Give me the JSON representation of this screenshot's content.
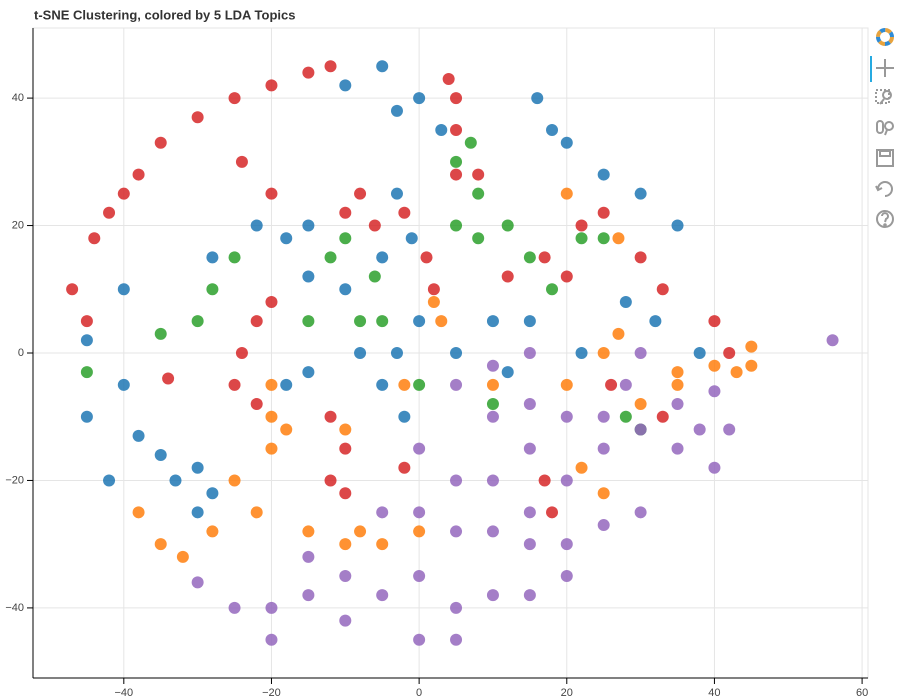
{
  "chart_data": {
    "type": "scatter",
    "title": "t-SNE Clustering, colored by 5 LDA Topics",
    "xlim": [
      -52.3,
      60.8
    ],
    "ylim": [
      -51,
      51
    ],
    "xticks": [
      {
        "value": -40,
        "label": "−40"
      },
      {
        "value": -20,
        "label": "−20"
      },
      0,
      20,
      40,
      60
    ],
    "yticks": [
      {
        "value": -40,
        "label": "−40"
      },
      {
        "value": -20,
        "label": "−20"
      },
      0,
      20,
      40
    ],
    "grid": true,
    "series": [
      {
        "color": "#d62728",
        "x": [
          -45,
          -47,
          -44,
          -42,
          -40,
          -38,
          -35,
          -30,
          -25,
          -20,
          -15,
          -12,
          -24,
          -20,
          -10,
          -8,
          -6,
          -20,
          -22,
          -24,
          -25,
          -22,
          -12,
          -10,
          -12,
          -10,
          -2,
          5,
          5,
          8,
          1,
          2,
          12,
          17,
          20,
          22,
          25,
          30,
          33,
          40,
          42,
          26,
          33,
          17,
          18,
          -2,
          4,
          5,
          -34
        ],
        "y": [
          5,
          10,
          18,
          22,
          25,
          28,
          33,
          37,
          40,
          42,
          44,
          45,
          30,
          25,
          22,
          25,
          20,
          8,
          5,
          0,
          -5,
          -8,
          -10,
          -15,
          -20,
          -22,
          -18,
          35,
          28,
          28,
          15,
          10,
          12,
          15,
          12,
          20,
          22,
          15,
          10,
          5,
          0,
          -5,
          -10,
          -20,
          -25,
          22,
          43,
          40,
          -4
        ]
      },
      {
        "color": "#1f77b4",
        "x": [
          -10,
          -5,
          -3,
          0,
          3,
          16,
          18,
          20,
          25,
          30,
          35,
          -3,
          -1,
          -5,
          -10,
          -15,
          -18,
          -22,
          -15,
          -28,
          -40,
          -45,
          -40,
          -38,
          -35,
          -30,
          -28,
          -33,
          -18,
          -15,
          -5,
          -3,
          0,
          5,
          10,
          12,
          15,
          22,
          28,
          32,
          38,
          -8,
          -2,
          -45,
          -42,
          -30
        ],
        "y": [
          42,
          45,
          38,
          40,
          35,
          40,
          35,
          33,
          28,
          25,
          20,
          25,
          18,
          15,
          10,
          12,
          18,
          20,
          20,
          15,
          10,
          2,
          -5,
          -13,
          -16,
          -18,
          -22,
          -20,
          -5,
          -3,
          -5,
          0,
          5,
          0,
          5,
          -3,
          5,
          0,
          8,
          5,
          0,
          0,
          -10,
          -10,
          -20,
          -25
        ]
      },
      {
        "color": "#2ca02c",
        "x": [
          5,
          7,
          8,
          5,
          8,
          -10,
          -12,
          -8,
          -5,
          -28,
          -30,
          -35,
          -45,
          -25,
          0,
          10,
          18,
          22,
          25,
          28,
          -15,
          -6,
          12,
          15,
          30
        ],
        "y": [
          30,
          33,
          25,
          20,
          18,
          18,
          15,
          5,
          5,
          10,
          5,
          3,
          -3,
          15,
          -5,
          -8,
          10,
          18,
          18,
          -10,
          5,
          12,
          20,
          15,
          -12
        ]
      },
      {
        "color": "#ff7f0e",
        "x": [
          -20,
          -20,
          -20,
          -18,
          -25,
          -22,
          -28,
          -38,
          -35,
          -32,
          -15,
          -10,
          -8,
          -5,
          0,
          -2,
          2,
          3,
          10,
          20,
          25,
          27,
          30,
          35,
          40,
          43,
          45,
          45,
          22,
          25,
          27,
          20,
          35,
          -10
        ],
        "y": [
          -5,
          -10,
          -15,
          -12,
          -20,
          -25,
          -28,
          -25,
          -30,
          -32,
          -28,
          -30,
          -28,
          -30,
          -28,
          -5,
          8,
          5,
          -5,
          -5,
          0,
          3,
          -8,
          -3,
          -2,
          -3,
          1,
          -2,
          -18,
          -22,
          18,
          25,
          -5,
          -12
        ]
      },
      {
        "color": "#9467bd",
        "x": [
          5,
          10,
          15,
          20,
          25,
          30,
          35,
          40,
          0,
          5,
          10,
          15,
          0,
          5,
          10,
          15,
          20,
          25,
          30,
          -5,
          -10,
          -5,
          0,
          5,
          10,
          15,
          20,
          -15,
          -20,
          -25,
          -30,
          -20,
          -10,
          0,
          5,
          15,
          20,
          25,
          28,
          35,
          40,
          30,
          15,
          10,
          38,
          42,
          -15,
          56
        ],
        "y": [
          -5,
          -10,
          -8,
          -10,
          -10,
          -12,
          -15,
          -18,
          -15,
          -20,
          -20,
          -15,
          -25,
          -28,
          -28,
          -25,
          -30,
          -27,
          -25,
          -25,
          -35,
          -38,
          -35,
          -40,
          -38,
          -38,
          -35,
          -38,
          -40,
          -40,
          -36,
          -45,
          -42,
          -45,
          -45,
          -30,
          -20,
          -15,
          -5,
          -8,
          -6,
          0,
          0,
          -2,
          -12,
          -12,
          -32,
          2
        ]
      }
    ]
  }
}
